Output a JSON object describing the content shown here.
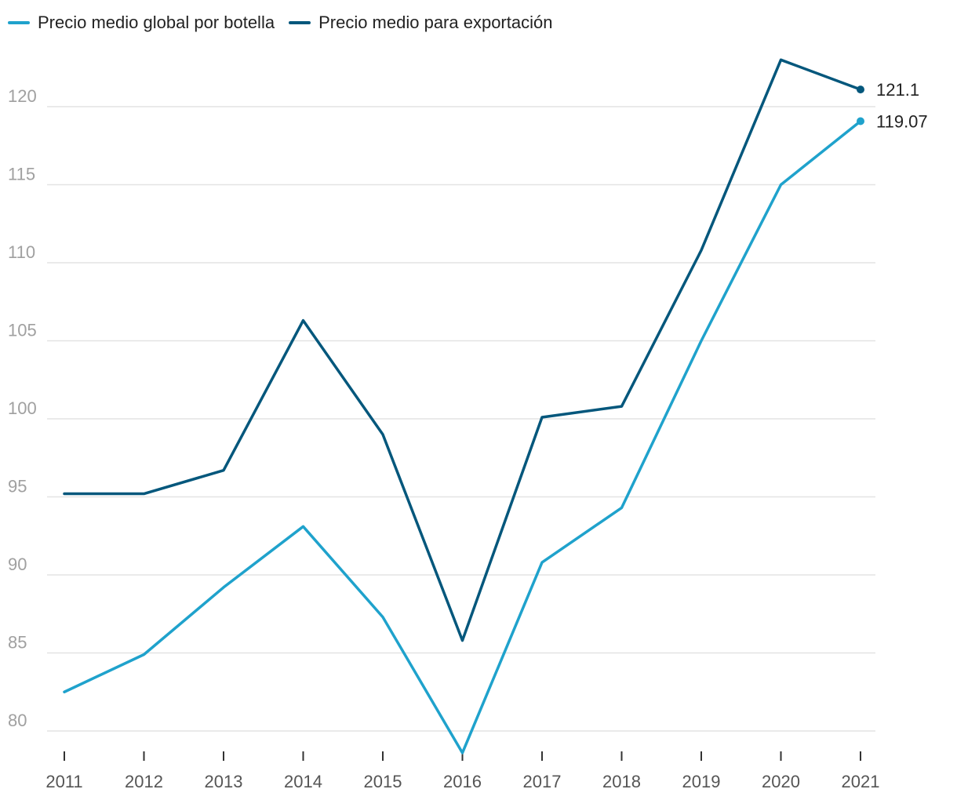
{
  "chart_data": {
    "type": "line",
    "title": "",
    "xlabel": "",
    "ylabel": "",
    "x": [
      "2011",
      "2012",
      "2013",
      "2014",
      "2015",
      "2016",
      "2017",
      "2018",
      "2019",
      "2020",
      "2021"
    ],
    "ylim": [
      78.5,
      124
    ],
    "yticks": [
      80,
      85,
      90,
      95,
      100,
      105,
      110,
      115,
      120
    ],
    "ytick_labels": [
      "80",
      "85",
      "90",
      "95",
      "100",
      "105",
      "110",
      "115",
      "120"
    ],
    "grid": true,
    "legend_position": "top-left",
    "series": [
      {
        "name": "Precio medio global por botella",
        "color": "#1fa2cc",
        "values": [
          82.5,
          84.9,
          89.2,
          93.1,
          87.3,
          78.6,
          90.8,
          94.3,
          105.0,
          115.0,
          119.07
        ],
        "end_label": "119.07"
      },
      {
        "name": "Precio medio para exportación",
        "color": "#04577c",
        "values": [
          95.2,
          95.2,
          96.7,
          106.3,
          99.0,
          85.8,
          100.1,
          100.8,
          110.8,
          123.0,
          121.1
        ],
        "end_label": "121.1"
      }
    ]
  }
}
